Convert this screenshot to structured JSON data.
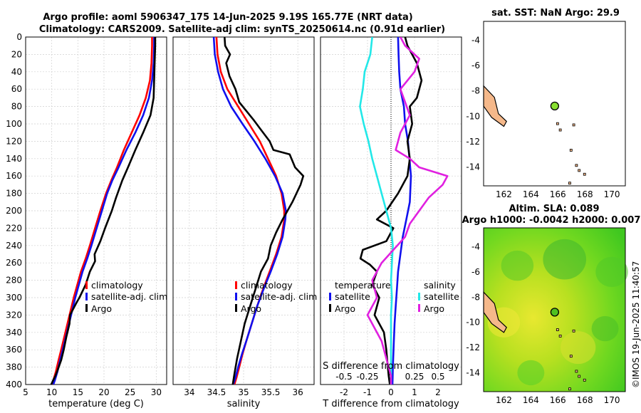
{
  "header": {
    "title_line1": "Argo profile: aoml 5906347_175 14-Jun-2025 9.19S 165.77E (NRT data)",
    "title_line2": "Climatology: CARS2009. Satellite-adj clim: synTS_20250614.nc (0.91d earlier)"
  },
  "colors": {
    "climatology": "#ff0000",
    "satellite": "#1010ee",
    "argo": "#000000",
    "sal_satellite": "#22e8e8",
    "sal_argo": "#e020e0",
    "land": "#f5b88a",
    "sst_marker": "#88e030"
  },
  "chart_data": [
    {
      "type": "line",
      "name": "temperature-profile",
      "xlabel": "temperature (deg C)",
      "ylabel": "depth",
      "xlim": [
        5,
        32
      ],
      "ylim": [
        400,
        0
      ],
      "xticks": [
        5,
        10,
        15,
        20,
        25,
        30
      ],
      "yticks": [
        0,
        20,
        40,
        60,
        80,
        100,
        120,
        140,
        160,
        180,
        200,
        220,
        240,
        260,
        280,
        300,
        320,
        340,
        360,
        380,
        400
      ],
      "grid": true,
      "legend": {
        "placement": "lower-right",
        "entries": [
          "climatology",
          "satellite-adj. clim",
          "Argo"
        ]
      },
      "series": [
        {
          "name": "climatology",
          "x": [
            29.2,
            29.2,
            29.1,
            28.8,
            28.0,
            26.8,
            25.3,
            23.8,
            22.5,
            21.4,
            20.4,
            19.3,
            18.3,
            17.3,
            16.5,
            15.6,
            14.9,
            14.2,
            13.6,
            13.0,
            12.4,
            11.8,
            11.3,
            10.8,
            10.3,
            10.0
          ],
          "y": [
            0,
            10,
            30,
            50,
            70,
            90,
            110,
            130,
            150,
            165,
            180,
            200,
            220,
            240,
            255,
            270,
            285,
            300,
            315,
            330,
            345,
            360,
            372,
            385,
            395,
            400
          ]
        },
        {
          "name": "satellite-adj. clim",
          "x": [
            29.6,
            29.6,
            29.5,
            29.2,
            28.6,
            27.5,
            26.0,
            24.3,
            22.8,
            21.6,
            20.6,
            19.6,
            18.6,
            17.6,
            16.8,
            15.9,
            15.2,
            14.5,
            13.9,
            13.3,
            12.7,
            12.1,
            11.6,
            11.1,
            10.6,
            10.3
          ],
          "y": [
            0,
            10,
            30,
            50,
            70,
            90,
            110,
            130,
            150,
            165,
            180,
            200,
            220,
            240,
            255,
            270,
            285,
            300,
            315,
            330,
            345,
            360,
            372,
            385,
            395,
            400
          ]
        },
        {
          "name": "Argo",
          "x": [
            29.8,
            29.8,
            29.7,
            29.6,
            29.5,
            29.2,
            28.9,
            27.5,
            26.0,
            24.6,
            23.5,
            22.3,
            21.5,
            20.2,
            19.3,
            18.2,
            18.3,
            17.3,
            16.5,
            15.3,
            14.8,
            13.5,
            13.4,
            12.8,
            12.3,
            11.8,
            11.2,
            10.7,
            10.2,
            9.9
          ],
          "y": [
            0,
            10,
            30,
            50,
            70,
            80,
            90,
            110,
            130,
            150,
            165,
            185,
            200,
            220,
            235,
            250,
            258,
            270,
            285,
            300,
            305,
            320,
            330,
            345,
            360,
            372,
            382,
            390,
            396,
            400
          ]
        }
      ]
    },
    {
      "type": "line",
      "name": "salinity-profile",
      "xlabel": "salinity",
      "xlim": [
        33.7,
        36.3
      ],
      "ylim": [
        400,
        0
      ],
      "xticks": [
        34,
        34.5,
        35,
        35.5,
        36
      ],
      "grid": true,
      "legend": {
        "placement": "lower-right",
        "entries": [
          "climatology",
          "satellite-adj. clim",
          "Argo"
        ]
      },
      "series": [
        {
          "name": "climatology",
          "x": [
            34.5,
            34.52,
            34.58,
            34.7,
            34.9,
            35.1,
            35.3,
            35.45,
            35.6,
            35.7,
            35.75,
            35.75,
            35.7,
            35.6,
            35.48,
            35.36,
            35.25,
            35.15,
            35.05,
            34.98,
            34.92,
            34.87,
            34.83
          ],
          "y": [
            0,
            20,
            40,
            60,
            80,
            100,
            120,
            140,
            160,
            180,
            200,
            210,
            230,
            250,
            270,
            290,
            310,
            330,
            350,
            365,
            380,
            392,
            400
          ]
        },
        {
          "name": "satellite-adj. clim",
          "x": [
            34.45,
            34.47,
            34.53,
            34.62,
            34.77,
            34.98,
            35.2,
            35.4,
            35.58,
            35.72,
            35.78,
            35.77,
            35.72,
            35.62,
            35.5,
            35.37,
            35.25,
            35.15,
            35.05,
            34.97,
            34.9,
            34.85,
            34.81
          ],
          "y": [
            0,
            20,
            40,
            60,
            80,
            100,
            120,
            140,
            160,
            180,
            200,
            210,
            230,
            250,
            270,
            290,
            310,
            330,
            350,
            365,
            380,
            392,
            400
          ]
        },
        {
          "name": "Argo",
          "x": [
            34.65,
            34.66,
            34.75,
            34.68,
            34.74,
            34.85,
            34.92,
            35.05,
            35.18,
            35.3,
            35.48,
            35.55,
            35.85,
            35.95,
            36.1,
            36.05,
            35.9,
            35.72,
            35.6,
            35.5,
            35.45,
            35.32,
            35.22,
            35.12,
            35.02,
            34.95,
            34.88,
            34.83,
            34.8
          ],
          "y": [
            0,
            10,
            20,
            30,
            45,
            60,
            75,
            85,
            95,
            105,
            120,
            130,
            135,
            150,
            160,
            170,
            190,
            210,
            225,
            240,
            255,
            270,
            290,
            310,
            330,
            350,
            370,
            388,
            400
          ]
        }
      ]
    },
    {
      "type": "line",
      "name": "difference-profile",
      "xlabel": "T difference from climatology",
      "top_xlabel": "S difference from climatology",
      "xlim": [
        -3,
        3
      ],
      "ylim": [
        400,
        0
      ],
      "xticks_T": [
        -2,
        -1,
        0,
        1,
        2
      ],
      "xticks_S": [
        "-0.5",
        "-0.25",
        "0",
        "0.25",
        "0.5"
      ],
      "grid": true,
      "legend_left": {
        "title": "temperature",
        "entries": [
          "satellite",
          "Argo"
        ]
      },
      "legend_right": {
        "title": "salinity",
        "entries": [
          "satellite",
          "Argo"
        ]
      },
      "series": [
        {
          "name": "T satellite",
          "x": [
            0.3,
            0.32,
            0.35,
            0.4,
            0.55,
            0.6,
            0.72,
            0.85,
            0.8,
            0.65,
            0.5,
            0.4,
            0.3,
            0.25,
            0.2,
            0.15,
            0.12,
            0.1,
            0.08,
            0.07,
            0.06
          ],
          "y": [
            0,
            20,
            40,
            60,
            80,
            100,
            120,
            160,
            190,
            210,
            230,
            250,
            270,
            290,
            310,
            330,
            350,
            365,
            380,
            392,
            400
          ]
        },
        {
          "name": "T Argo",
          "x": [
            0.6,
            0.7,
            1.1,
            1.3,
            1.1,
            0.8,
            0.9,
            0.7,
            0.8,
            0.7,
            0.3,
            -0.2,
            -0.6,
            0.1,
            -0.2,
            -1.2,
            -1.3,
            -0.9,
            -0.6,
            -0.8,
            -0.5,
            -0.7,
            -0.3,
            -0.2,
            -0.15,
            -0.1,
            -0.05
          ],
          "y": [
            0,
            10,
            30,
            50,
            70,
            80,
            100,
            120,
            140,
            160,
            180,
            200,
            210,
            220,
            235,
            245,
            255,
            262,
            270,
            285,
            300,
            320,
            340,
            360,
            375,
            390,
            400
          ]
        },
        {
          "name": "S satellite",
          "x": [
            -0.2,
            -0.22,
            -0.28,
            -0.3,
            -0.33,
            -0.29,
            -0.24,
            -0.2,
            -0.15,
            -0.1,
            -0.05,
            0,
            0.02,
            0.01,
            0,
            0.01,
            0,
            0,
            0,
            0
          ],
          "y": [
            0,
            20,
            40,
            60,
            80,
            100,
            120,
            140,
            160,
            180,
            200,
            220,
            240,
            260,
            280,
            300,
            320,
            350,
            380,
            400
          ]
        },
        {
          "name": "S Argo",
          "x": [
            0.1,
            0.15,
            0.3,
            0.25,
            0.1,
            0.15,
            0.2,
            0.1,
            0.05,
            0.2,
            0.3,
            0.45,
            0.6,
            0.55,
            0.4,
            0.3,
            0.2,
            0.15,
            -0.1,
            -0.2,
            -0.15,
            -0.25,
            -0.1,
            -0.05,
            0,
            0
          ],
          "y": [
            0,
            10,
            25,
            40,
            60,
            75,
            90,
            110,
            130,
            140,
            150,
            155,
            160,
            170,
            185,
            200,
            215,
            230,
            260,
            280,
            300,
            320,
            350,
            370,
            390,
            400
          ]
        }
      ]
    },
    {
      "type": "heatmap",
      "name": "sst-map",
      "title": "sat. SST: NaN Argo: 29.9",
      "xlim": [
        160.5,
        171
      ],
      "ylim": [
        -15.5,
        -2.5
      ],
      "xticks": [
        162,
        164,
        166,
        168,
        170
      ],
      "yticks": [
        -4,
        -6,
        -8,
        -10,
        -12,
        -14
      ],
      "argo_position": {
        "lon": 165.77,
        "lat": -9.19
      }
    },
    {
      "type": "heatmap",
      "name": "sla-map",
      "title": "Altim. SLA: 0.089",
      "subtitle": "Argo h1000: -0.0042 h2000: 0.007",
      "xlim": [
        160.5,
        171
      ],
      "ylim": [
        -15.5,
        -2.5
      ],
      "xticks": [
        162,
        164,
        166,
        168,
        170
      ],
      "yticks": [
        -4,
        -6,
        -8,
        -10,
        -12,
        -14
      ],
      "argo_position": {
        "lon": 165.77,
        "lat": -9.19
      }
    }
  ],
  "watermark": "©IMOS 19-Jun-2025 11:40:57"
}
